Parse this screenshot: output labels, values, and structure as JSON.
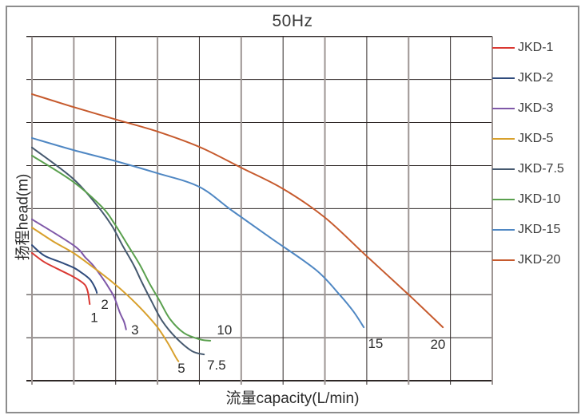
{
  "title": "50Hz",
  "colors": {
    "grid_dark": "#2e2726",
    "grid_gray": "#9e9694",
    "frame": "#8d8d8d",
    "text": "#2b2b2b",
    "annotation_text": "#2b2b2b"
  },
  "legend": [
    {
      "label": "JKD-1",
      "color": "#da3832"
    },
    {
      "label": "JKD-2",
      "color": "#2f4b7c"
    },
    {
      "label": "JKD-3",
      "color": "#7f58a8"
    },
    {
      "label": "JKD-5",
      "color": "#d8a02c"
    },
    {
      "label": "JKD-7.5",
      "color": "#46596f"
    },
    {
      "label": "JKD-10",
      "color": "#5aa04e"
    },
    {
      "label": "JKD-15",
      "color": "#4f87c3"
    },
    {
      "label": "JKD-20",
      "color": "#c65a2d"
    }
  ],
  "chart_data": {
    "type": "line",
    "title": "50Hz",
    "xlabel": "流量capacity(L/min)",
    "ylabel": "扬程head(m)",
    "grid": true,
    "legend_position": "right",
    "x_axis": {
      "min": 0,
      "max": 11,
      "gridlines": 12,
      "tick_labels_visible": false
    },
    "y_axis": {
      "min": 0,
      "max": 8,
      "gridlines": 9,
      "tick_labels_visible": false
    },
    "units_note": "axes carry no numeric tick labels; point values are in grid units (x: 0-11 columns, y: 0-8 rows from bottom)",
    "series": [
      {
        "name": "JKD-1",
        "color": "#da3832",
        "points": [
          [
            0,
            2.97
          ],
          [
            0.29,
            2.76
          ],
          [
            0.61,
            2.6
          ],
          [
            0.92,
            2.45
          ],
          [
            1.15,
            2.32
          ],
          [
            1.28,
            2.21
          ],
          [
            1.34,
            2.04
          ],
          [
            1.38,
            1.78
          ]
        ]
      },
      {
        "name": "JKD-2",
        "color": "#2f4b7c",
        "points": [
          [
            0,
            3.15
          ],
          [
            0.29,
            2.91
          ],
          [
            0.67,
            2.76
          ],
          [
            0.99,
            2.63
          ],
          [
            1.2,
            2.5
          ],
          [
            1.38,
            2.36
          ],
          [
            1.47,
            2.23
          ],
          [
            1.53,
            2.11
          ],
          [
            1.55,
            2.04
          ]
        ]
      },
      {
        "name": "JKD-3",
        "color": "#7f58a8",
        "points": [
          [
            0,
            3.75
          ],
          [
            0.99,
            3.15
          ],
          [
            1.28,
            2.86
          ],
          [
            1.47,
            2.67
          ],
          [
            1.68,
            2.39
          ],
          [
            1.83,
            2.17
          ],
          [
            1.97,
            1.93
          ],
          [
            2.1,
            1.58
          ],
          [
            2.2,
            1.37
          ],
          [
            2.25,
            1.19
          ]
        ]
      },
      {
        "name": "JKD-5",
        "color": "#d8a02c",
        "points": [
          [
            0,
            3.56
          ],
          [
            0.52,
            3.23
          ],
          [
            0.99,
            2.97
          ],
          [
            1.47,
            2.63
          ],
          [
            1.91,
            2.3
          ],
          [
            2.29,
            1.98
          ],
          [
            2.67,
            1.61
          ],
          [
            3.0,
            1.24
          ],
          [
            3.25,
            0.87
          ],
          [
            3.44,
            0.54
          ],
          [
            3.5,
            0.45
          ]
        ]
      },
      {
        "name": "JKD-7.5",
        "color": "#46596f",
        "points": [
          [
            0,
            5.42
          ],
          [
            0.99,
            4.69
          ],
          [
            1.59,
            4.03
          ],
          [
            1.91,
            3.6
          ],
          [
            2.16,
            3.15
          ],
          [
            2.43,
            2.69
          ],
          [
            2.62,
            2.3
          ],
          [
            2.86,
            1.84
          ],
          [
            3.11,
            1.39
          ],
          [
            3.44,
            1.0
          ],
          [
            3.82,
            0.69
          ],
          [
            4.11,
            0.61
          ]
        ]
      },
      {
        "name": "JKD-10",
        "color": "#5aa04e",
        "points": [
          [
            0,
            5.23
          ],
          [
            0.99,
            4.62
          ],
          [
            1.68,
            4.03
          ],
          [
            1.97,
            3.65
          ],
          [
            2.29,
            3.15
          ],
          [
            2.58,
            2.69
          ],
          [
            2.81,
            2.26
          ],
          [
            3.06,
            1.84
          ],
          [
            3.3,
            1.43
          ],
          [
            3.63,
            1.11
          ],
          [
            4.01,
            0.96
          ],
          [
            4.26,
            0.93
          ]
        ]
      },
      {
        "name": "JKD-15",
        "color": "#4f87c3",
        "points": [
          [
            0,
            5.64
          ],
          [
            0.99,
            5.36
          ],
          [
            2.01,
            5.1
          ],
          [
            3.0,
            4.82
          ],
          [
            3.99,
            4.51
          ],
          [
            4.77,
            3.96
          ],
          [
            5.73,
            3.3
          ],
          [
            6.78,
            2.58
          ],
          [
            7.35,
            2.0
          ],
          [
            7.68,
            1.61
          ],
          [
            7.93,
            1.24
          ]
        ]
      },
      {
        "name": "JKD-20",
        "color": "#c65a2d",
        "points": [
          [
            0,
            6.66
          ],
          [
            0.99,
            6.36
          ],
          [
            2.01,
            6.07
          ],
          [
            3.0,
            5.79
          ],
          [
            4.01,
            5.43
          ],
          [
            5.0,
            4.95
          ],
          [
            5.98,
            4.47
          ],
          [
            6.99,
            3.8
          ],
          [
            7.98,
            2.91
          ],
          [
            9.0,
            2.0
          ],
          [
            9.82,
            1.24
          ]
        ]
      }
    ],
    "annotations": [
      {
        "text": "1",
        "x": 1.49,
        "y": 1.47
      },
      {
        "text": "2",
        "x": 1.74,
        "y": 1.78
      },
      {
        "text": "3",
        "x": 2.46,
        "y": 1.19
      },
      {
        "text": "5",
        "x": 3.57,
        "y": 0.3
      },
      {
        "text": "7.5",
        "x": 4.41,
        "y": 0.37
      },
      {
        "text": "10",
        "x": 4.6,
        "y": 1.19
      },
      {
        "text": "15",
        "x": 8.21,
        "y": 0.87
      },
      {
        "text": "20",
        "x": 9.7,
        "y": 0.85
      }
    ]
  }
}
